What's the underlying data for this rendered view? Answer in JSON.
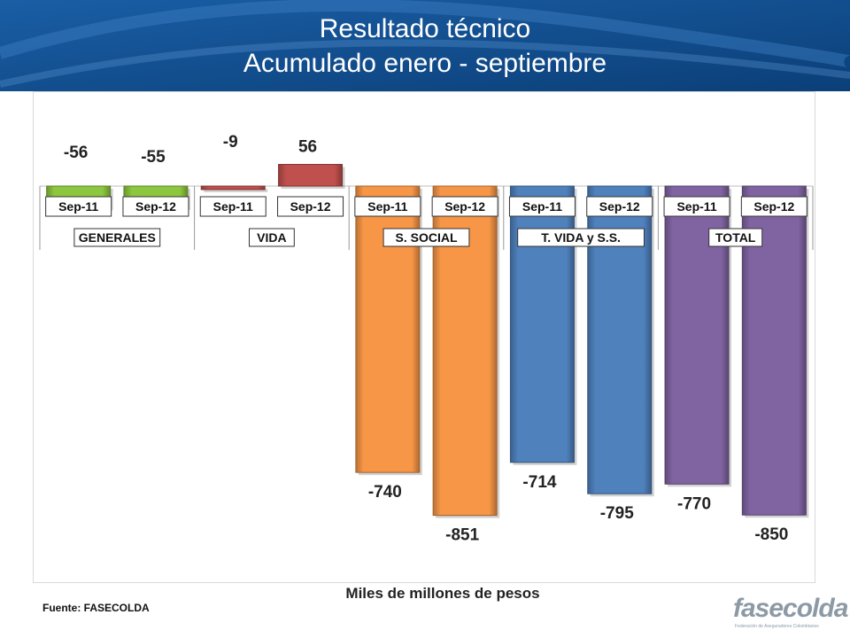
{
  "title": {
    "line1": "Resultado técnico",
    "line2": "Acumulado enero - septiembre"
  },
  "unit_label": "Miles de millones de pesos",
  "source": "Fuente: FASECOLDA",
  "logo": {
    "wordmark": "fasecolda",
    "tagline": "Federación de Aseguradores Colombianos"
  },
  "colors": {
    "header": "#0f4a8a",
    "generales": "#8dc63f",
    "vida": "#c0504d",
    "s_social": "#f79646",
    "t_vida_ss": "#4f81bd",
    "total": "#8064a2"
  },
  "chart_data": {
    "type": "bar",
    "title": "Resultado técnico",
    "subtitle": "Acumulado enero - septiembre",
    "xlabel": "",
    "ylabel": "Miles de millones de pesos",
    "ylim": [
      -851,
      56
    ],
    "grid": false,
    "legend": "none",
    "categories": [
      "Sep-11",
      "Sep-12",
      "Sep-11",
      "Sep-12",
      "Sep-11",
      "Sep-12",
      "Sep-11",
      "Sep-12",
      "Sep-11",
      "Sep-12"
    ],
    "groups": [
      {
        "name": "GENERALES",
        "categories": [
          "Sep-11",
          "Sep-12"
        ],
        "values": [
          -56,
          -55
        ],
        "color": "#8dc63f"
      },
      {
        "name": "VIDA",
        "categories": [
          "Sep-11",
          "Sep-12"
        ],
        "values": [
          -9,
          56
        ],
        "color": "#c0504d"
      },
      {
        "name": "S. SOCIAL",
        "categories": [
          "Sep-11",
          "Sep-12"
        ],
        "values": [
          -740,
          -851
        ],
        "color": "#f79646"
      },
      {
        "name": "T. VIDA y S.S.",
        "categories": [
          "Sep-11",
          "Sep-12"
        ],
        "values": [
          -714,
          -795
        ],
        "color": "#4f81bd"
      },
      {
        "name": "TOTAL",
        "categories": [
          "Sep-11",
          "Sep-12"
        ],
        "values": [
          -770,
          -850
        ],
        "color": "#8064a2"
      }
    ],
    "data_labels": [
      "-56",
      "-55",
      "-9",
      "56",
      "-740",
      "-851",
      "-714",
      "-795",
      "-770",
      "-850"
    ]
  }
}
